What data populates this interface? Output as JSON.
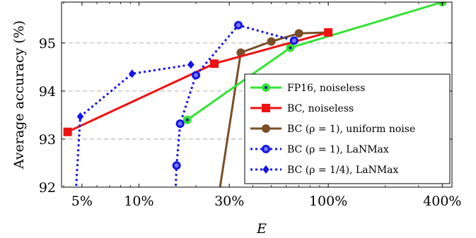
{
  "chart_data": {
    "type": "line",
    "x_scale": "log",
    "xlabel": "E",
    "ylabel": "Average accuracy (%)",
    "xlim": [
      3.9,
      450
    ],
    "ylim": [
      92,
      95.85
    ],
    "x_ticks": [
      5,
      10,
      30,
      100,
      400
    ],
    "x_tick_labels": [
      "5%",
      "10%",
      "30%",
      "100%",
      "400%"
    ],
    "y_ticks": [
      92,
      93,
      94,
      95
    ],
    "y_tick_labels": [
      "92",
      "93",
      "94",
      "95"
    ],
    "grid": "horizontal-dashed",
    "legend_position": "bottom-right",
    "colors": {
      "green": "#33e333",
      "red": "#ee1111",
      "brown": "#7a4f27",
      "blue": "#1414e6"
    },
    "series": [
      {
        "name": "FP16, noiseless",
        "color": "#33e333",
        "style": "solid",
        "marker": "circle",
        "x": [
          18,
          63,
          400
        ],
        "y": [
          93.4,
          94.9,
          95.85
        ]
      },
      {
        "name": "BC, noiseless",
        "color": "#ee1111",
        "style": "solid",
        "marker": "square",
        "x": [
          4.2,
          25,
          100
        ],
        "y": [
          93.15,
          94.57,
          95.22
        ]
      },
      {
        "name": "BC (ρ = 1), uniform noise",
        "color": "#7a4f27",
        "style": "solid",
        "marker": "circle",
        "x": [
          24.5,
          34.5,
          50,
          70,
          100
        ],
        "y": [
          91.0,
          94.8,
          95.03,
          95.2,
          95.22
        ]
      },
      {
        "name": "BC (ρ = 1), LaNMax",
        "color": "#1414e6",
        "style": "dotted",
        "marker": "circle",
        "x": [
          15.3,
          15.8,
          16.5,
          20,
          33.5,
          66
        ],
        "y": [
          91.0,
          92.45,
          93.32,
          94.33,
          95.37,
          95.05
        ]
      },
      {
        "name": "BC (ρ = 1/4), LaNMax",
        "color": "#1414e6",
        "style": "dotted",
        "marker": "diamond",
        "x": [
          4.5,
          4.9,
          9.2,
          18.8
        ],
        "y": [
          91.0,
          93.47,
          94.36,
          94.55
        ]
      }
    ]
  }
}
